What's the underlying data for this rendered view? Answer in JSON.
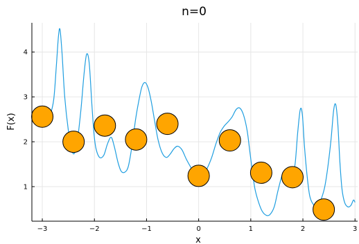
{
  "chart_data": {
    "type": "scatter",
    "title": "n=0",
    "xlabel": "x",
    "ylabel": "F(x)",
    "xlim": [
      -3.2,
      3.05
    ],
    "ylim": [
      0.23,
      4.65
    ],
    "xticks": [
      -3,
      -2,
      -1,
      0,
      1,
      2,
      3
    ],
    "yticks": [
      1,
      2,
      3,
      4
    ],
    "grid": true,
    "legend": "none",
    "colors": {
      "curve": "#1f9ee0",
      "points": "#ffa500",
      "point_edge": "#000000"
    },
    "series": [
      {
        "kind": "line",
        "x": [
          -3.0,
          -2.93,
          -2.85,
          -2.78,
          -2.73,
          -2.69,
          -2.66,
          -2.62,
          -2.57,
          -2.5,
          -2.43,
          -2.38,
          -2.33,
          -2.26,
          -2.2,
          -2.15,
          -2.1,
          -2.05,
          -2.01,
          -1.97,
          -1.9,
          -1.82,
          -1.75,
          -1.68,
          -1.62,
          -1.55,
          -1.49,
          -1.42,
          -1.35,
          -1.28,
          -1.21,
          -1.15,
          -1.09,
          -1.03,
          -0.97,
          -0.91,
          -0.85,
          -0.78,
          -0.7,
          -0.62,
          -0.55,
          -0.47,
          -0.4,
          -0.32,
          -0.24,
          -0.16,
          -0.08,
          0.0,
          0.08,
          0.16,
          0.25,
          0.33,
          0.41,
          0.49,
          0.57,
          0.64,
          0.72,
          0.79,
          0.86,
          0.93,
          0.98,
          1.03,
          1.08,
          1.15,
          1.22,
          1.3,
          1.37,
          1.45,
          1.52,
          1.6,
          1.66,
          1.73,
          1.79,
          1.85,
          1.9,
          1.95,
          1.99,
          2.03,
          2.08,
          2.13,
          2.19,
          2.25,
          2.31,
          2.36,
          2.42,
          2.48,
          2.54,
          2.59,
          2.63,
          2.67,
          2.71,
          2.75,
          2.8,
          2.86,
          2.92,
          2.97,
          3.0
        ],
        "y": [
          2.45,
          2.5,
          2.6,
          2.95,
          3.7,
          4.35,
          4.5,
          3.95,
          3.0,
          2.25,
          1.8,
          1.75,
          2.0,
          2.7,
          3.5,
          3.95,
          3.75,
          2.85,
          2.2,
          1.85,
          1.65,
          1.7,
          1.95,
          2.1,
          1.9,
          1.55,
          1.35,
          1.32,
          1.45,
          1.9,
          2.5,
          2.9,
          3.22,
          3.32,
          3.2,
          2.9,
          2.5,
          2.05,
          1.75,
          1.65,
          1.72,
          1.85,
          1.9,
          1.82,
          1.62,
          1.45,
          1.3,
          1.22,
          1.25,
          1.4,
          1.65,
          1.95,
          2.2,
          2.35,
          2.45,
          2.55,
          2.72,
          2.75,
          2.6,
          2.25,
          1.8,
          1.35,
          0.95,
          0.65,
          0.45,
          0.36,
          0.38,
          0.55,
          0.9,
          1.25,
          1.35,
          1.25,
          1.2,
          1.5,
          2.2,
          2.72,
          2.6,
          1.9,
          1.25,
          0.8,
          0.62,
          0.58,
          0.62,
          0.75,
          1.0,
          1.45,
          2.05,
          2.7,
          2.83,
          2.4,
          1.55,
          0.95,
          0.65,
          0.55,
          0.58,
          0.7,
          0.65
        ]
      },
      {
        "kind": "points",
        "x": [
          -3.0,
          -2.4,
          -1.8,
          -1.2,
          -0.6,
          0.0,
          0.6,
          1.2,
          1.8,
          2.4
        ],
        "y": [
          2.56,
          2.0,
          2.36,
          2.05,
          2.4,
          1.24,
          2.03,
          1.31,
          1.21,
          0.49
        ]
      }
    ]
  }
}
